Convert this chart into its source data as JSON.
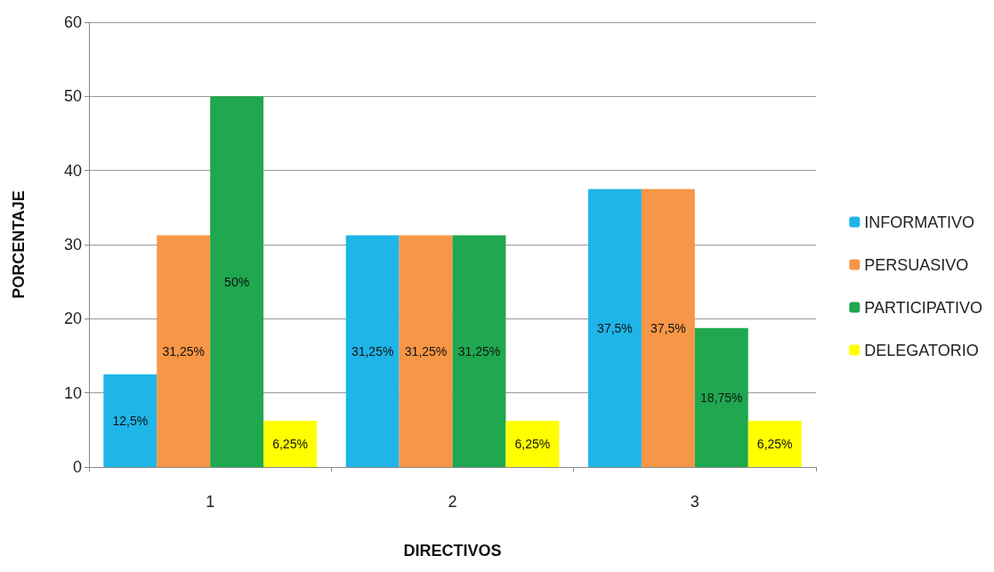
{
  "chart_data": {
    "type": "bar",
    "xlabel": "DIRECTIVOS",
    "ylabel": "PORCENTAJE",
    "categories": [
      "1",
      "2",
      "3"
    ],
    "series": [
      {
        "name": "INFORMATIVO",
        "color": "#1fb5e8",
        "values": [
          12.5,
          31.25,
          37.5
        ],
        "value_labels": [
          "12,5%",
          "31,25%",
          "37,5%"
        ]
      },
      {
        "name": "PERSUASIVO",
        "color": "#f79646",
        "values": [
          31.25,
          31.25,
          37.5
        ],
        "value_labels": [
          "31,25%",
          "31,25%",
          "37,5%"
        ]
      },
      {
        "name": "PARTICIPATIVO",
        "color": "#1fa84f",
        "values": [
          50,
          31.25,
          18.75
        ],
        "value_labels": [
          "50%",
          "31,25%",
          "18,75%"
        ]
      },
      {
        "name": "DELEGATORIO",
        "color": "#ffff00",
        "values": [
          6.25,
          6.25,
          6.25
        ],
        "value_labels": [
          "6,25%",
          "6,25%",
          "6,25%"
        ]
      }
    ],
    "ylim": [
      0,
      60
    ],
    "yticks": [
      0,
      10,
      20,
      30,
      40,
      50,
      60
    ],
    "grid": "y",
    "legend": "right"
  }
}
